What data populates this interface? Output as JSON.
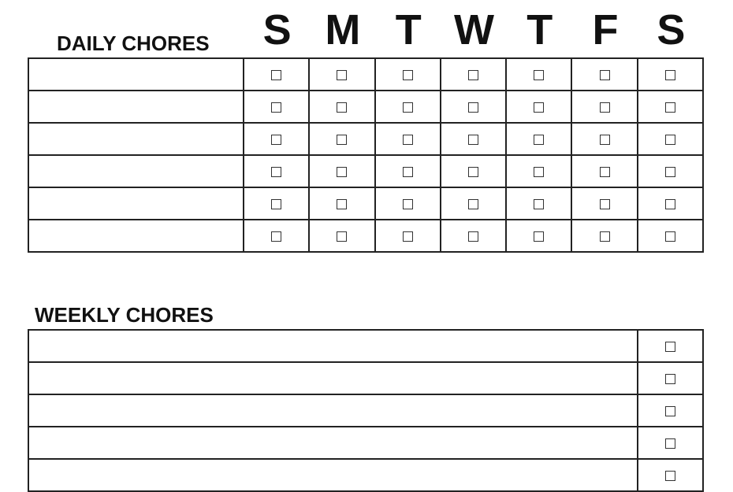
{
  "daily": {
    "title": "DAILY CHORES",
    "days": [
      "S",
      "M",
      "T",
      "W",
      "T",
      "F",
      "S"
    ],
    "rows": [
      "",
      "",
      "",
      "",
      "",
      ""
    ],
    "checkbox_icon": "empty-checkbox"
  },
  "weekly": {
    "title": "WEEKLY CHORES",
    "rows": [
      "",
      "",
      "",
      "",
      ""
    ],
    "checkbox_icon": "empty-checkbox"
  }
}
